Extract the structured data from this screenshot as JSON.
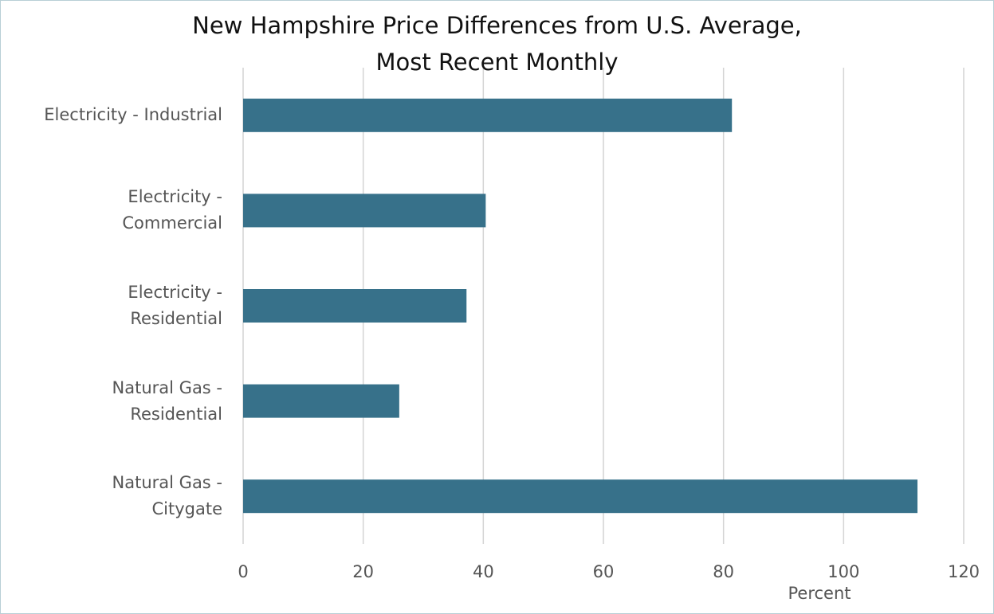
{
  "chart_data": {
    "type": "bar",
    "orientation": "horizontal",
    "title": "New Hampshire Price Differences from U.S. Average,\nMost Recent Monthly",
    "x_label": "Percent",
    "categories": [
      "Electricity - Industrial",
      "Electricity -\nCommercial",
      "Electricity -\nResidential",
      "Natural Gas -\nResidential",
      "Natural Gas -\nCitygate"
    ],
    "values": [
      81.4,
      40.4,
      37.2,
      26.0,
      112.3
    ],
    "color": "#37718a",
    "xlim": [
      0,
      120
    ],
    "xticks": [
      0,
      20,
      40,
      60,
      80,
      100,
      120
    ],
    "grid": true
  }
}
